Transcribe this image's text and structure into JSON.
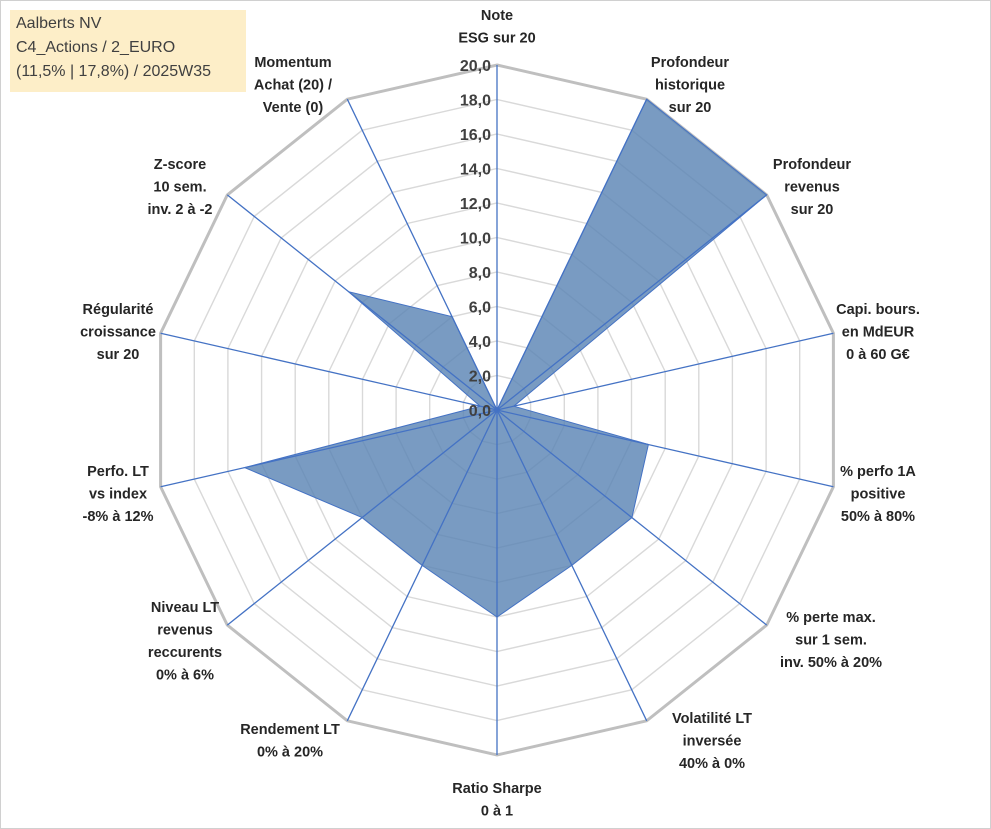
{
  "info_box": {
    "line1": "Aalberts NV",
    "line2": "C4_Actions / 2_EURO",
    "line3": "(11,5% | 17,8%) / 2025W35"
  },
  "chart_data": {
    "type": "radar",
    "r_max": 20,
    "r_step": 2,
    "tick_labels": [
      "0,0",
      "2,0",
      "4,0",
      "6,0",
      "8,0",
      "10,0",
      "12,0",
      "14,0",
      "16,0",
      "18,0",
      "20,0"
    ],
    "axes": [
      {
        "label": [
          "Note",
          "ESG sur 20"
        ],
        "value": 0
      },
      {
        "label": [
          "Profondeur",
          "historique",
          "sur 20"
        ],
        "value": 20
      },
      {
        "label": [
          "Profondeur",
          "revenus",
          "sur 20"
        ],
        "value": 20
      },
      {
        "label": [
          "Capi. bours.",
          "en MdEUR",
          "0 à 60 G€"
        ],
        "value": 1
      },
      {
        "label": [
          "% perfo 1A",
          "positive",
          "50% à 80%"
        ],
        "value": 9
      },
      {
        "label": [
          "% perte max.",
          "sur 1 sem.",
          "inv. 50% à 20%"
        ],
        "value": 10
      },
      {
        "label": [
          "Volatilité LT",
          "inversée",
          "40% à 0%"
        ],
        "value": 10
      },
      {
        "label": [
          "Ratio Sharpe",
          "0 à 1"
        ],
        "value": 12
      },
      {
        "label": [
          "Rendement LT",
          "0% à 20%"
        ],
        "value": 10
      },
      {
        "label": [
          "Niveau LT",
          "revenus",
          "reccurents",
          "0% à 6%"
        ],
        "value": 10
      },
      {
        "label": [
          "Perfo. LT",
          "vs index",
          "-8% à 12%"
        ],
        "value": 15
      },
      {
        "label": [
          "Régularité",
          "croissance",
          "sur 20"
        ],
        "value": 1
      },
      {
        "label": [
          "Z-score",
          "10 sem.",
          "inv. 2 à -2"
        ],
        "value": 11
      },
      {
        "label": [
          "Momentum",
          "Achat (20) /",
          "Vente (0)"
        ],
        "value": 6
      }
    ],
    "colors": {
      "fill": "#5b85b5",
      "stroke": "#4472c4",
      "grid_outer": "#bfbfbf",
      "grid_inner": "#d9d9d9",
      "spoke": "#4472c4"
    },
    "grid": true,
    "legend": "none"
  }
}
